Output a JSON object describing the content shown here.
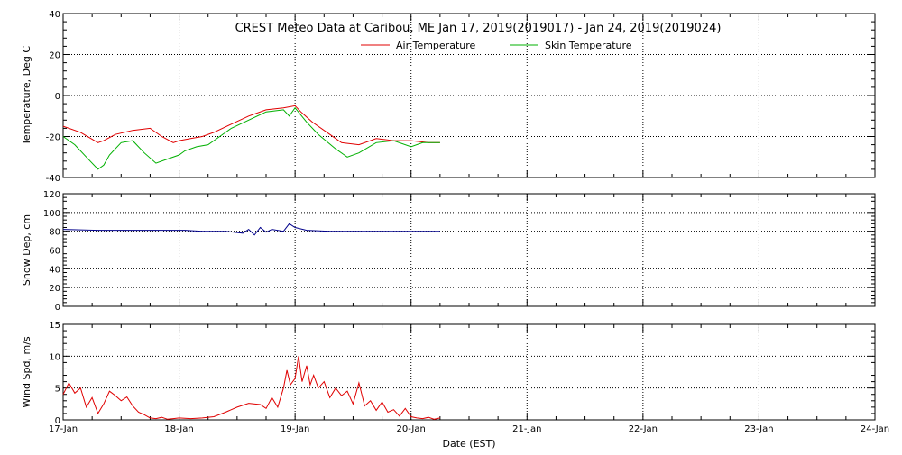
{
  "chart_data": {
    "title": "CREST Meteo Data at Caribou, ME   Jan 17, 2019(2019017) - Jan 24, 2019(2019024)",
    "xlabel": "Date (EST)",
    "x_tick_labels": [
      "17-Jan",
      "18-Jan",
      "19-Jan",
      "20-Jan",
      "21-Jan",
      "22-Jan",
      "23-Jan",
      "24-Jan"
    ],
    "xlim_days": [
      0,
      7
    ],
    "grid": true,
    "panels": [
      {
        "type": "line",
        "ylabel": "Temperature, Deg C",
        "ylim": [
          -40,
          40
        ],
        "yticks": [
          -40,
          -20,
          0,
          20,
          40
        ],
        "legend_placement": "top-center",
        "series": [
          {
            "name": "Air Temperature",
            "color": "#e00000",
            "x": [
              0.0,
              0.15,
              0.3,
              0.35,
              0.45,
              0.6,
              0.75,
              0.85,
              0.95,
              1.0,
              1.1,
              1.2,
              1.3,
              1.45,
              1.6,
              1.75,
              1.9,
              2.0,
              2.05,
              2.15,
              2.3,
              2.4,
              2.55,
              2.7,
              2.85,
              3.0,
              3.15,
              3.25
            ],
            "y": [
              -15,
              -18,
              -23,
              -22,
              -19,
              -17,
              -16,
              -20,
              -23,
              -22,
              -21,
              -20,
              -18,
              -14,
              -10,
              -7,
              -6,
              -5,
              -8,
              -13,
              -19,
              -23,
              -24,
              -21,
              -22,
              -22,
              -23,
              -23
            ]
          },
          {
            "name": "Skin Temperature",
            "color": "#00b000",
            "x": [
              0.0,
              0.1,
              0.2,
              0.3,
              0.35,
              0.4,
              0.5,
              0.6,
              0.7,
              0.8,
              0.9,
              1.0,
              1.05,
              1.15,
              1.25,
              1.35,
              1.45,
              1.6,
              1.75,
              1.9,
              1.95,
              2.0,
              2.1,
              2.2,
              2.35,
              2.45,
              2.55,
              2.7,
              2.85,
              3.0,
              3.1,
              3.25
            ],
            "y": [
              -20,
              -24,
              -30,
              -36,
              -34,
              -29,
              -23,
              -22,
              -28,
              -33,
              -31,
              -29,
              -27,
              -25,
              -24,
              -20,
              -16,
              -12,
              -8,
              -7,
              -10,
              -6,
              -13,
              -19,
              -26,
              -30,
              -28,
              -23,
              -22,
              -25,
              -23,
              -23
            ]
          }
        ]
      },
      {
        "type": "line",
        "ylabel": "Snow Dep, cm",
        "ylim": [
          0,
          120
        ],
        "yticks": [
          0,
          20,
          40,
          60,
          80,
          100,
          120
        ],
        "series": [
          {
            "name": "Snow Depth",
            "color": "#00008b",
            "x": [
              0.0,
              0.3,
              0.6,
              0.9,
              1.05,
              1.2,
              1.4,
              1.55,
              1.6,
              1.65,
              1.7,
              1.75,
              1.8,
              1.9,
              1.95,
              2.0,
              2.1,
              2.3,
              2.6,
              2.9,
              3.25
            ],
            "y": [
              82,
              81,
              81,
              81,
              81,
              80,
              80,
              78,
              82,
              76,
              84,
              79,
              82,
              80,
              88,
              84,
              81,
              80,
              80,
              80,
              80
            ]
          }
        ]
      },
      {
        "type": "line",
        "ylabel": "Wind Spd, m/s",
        "ylim": [
          0,
          15
        ],
        "yticks": [
          0,
          5,
          10,
          15
        ],
        "series": [
          {
            "name": "Wind Speed",
            "color": "#e00000",
            "x": [
              0.0,
              0.05,
              0.1,
              0.15,
              0.2,
              0.25,
              0.3,
              0.35,
              0.4,
              0.45,
              0.5,
              0.55,
              0.6,
              0.65,
              0.7,
              0.75,
              0.8,
              0.85,
              0.9,
              0.95,
              1.0,
              1.1,
              1.2,
              1.3,
              1.4,
              1.5,
              1.6,
              1.7,
              1.75,
              1.8,
              1.85,
              1.9,
              1.93,
              1.96,
              2.0,
              2.03,
              2.06,
              2.1,
              2.13,
              2.16,
              2.2,
              2.25,
              2.3,
              2.35,
              2.4,
              2.45,
              2.5,
              2.55,
              2.6,
              2.65,
              2.7,
              2.75,
              2.8,
              2.85,
              2.9,
              2.95,
              3.0,
              3.05,
              3.1,
              3.15,
              3.2,
              3.25
            ],
            "y": [
              4.0,
              5.8,
              4.2,
              5.0,
              2.0,
              3.5,
              1.0,
              2.5,
              4.5,
              3.8,
              3.0,
              3.6,
              2.2,
              1.2,
              0.8,
              0.3,
              0.2,
              0.4,
              0.1,
              0.2,
              0.3,
              0.2,
              0.3,
              0.5,
              1.2,
              2.0,
              2.6,
              2.4,
              1.8,
              3.5,
              2.0,
              5.0,
              7.8,
              5.5,
              6.5,
              10.0,
              6.0,
              8.5,
              5.5,
              7.0,
              5.0,
              6.0,
              3.5,
              5.0,
              3.8,
              4.5,
              2.5,
              5.8,
              2.2,
              3.0,
              1.5,
              2.8,
              1.2,
              1.6,
              0.6,
              1.8,
              0.5,
              0.3,
              0.2,
              0.4,
              0.1,
              0.3
            ]
          }
        ]
      }
    ]
  }
}
